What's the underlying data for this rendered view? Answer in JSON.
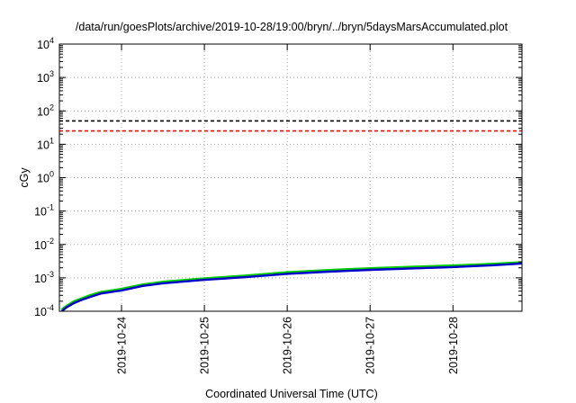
{
  "chart_data": {
    "type": "line",
    "title": "/data/run/goesPlots/archive/2019-10-28/19:00/bryn/../bryn/5daysMarsAccumulated.plot",
    "xlabel": "Coordinated Universal Time (UTC)",
    "ylabel": "cGy",
    "y_scale": "log",
    "ylim": [
      0.0001,
      10000
    ],
    "xlim": [
      "2019-10-23 06:00",
      "2019-10-28 20:00"
    ],
    "x_ticks": [
      "2019-10-24",
      "2019-10-25",
      "2019-10-26",
      "2019-10-27",
      "2019-10-28"
    ],
    "y_ticks": [
      {
        "value": 0.0001,
        "base": "10",
        "exp": "-4"
      },
      {
        "value": 0.001,
        "base": "10",
        "exp": "-3"
      },
      {
        "value": 0.01,
        "base": "10",
        "exp": "-2"
      },
      {
        "value": 0.1,
        "base": "10",
        "exp": "-1"
      },
      {
        "value": 1,
        "base": "10",
        "exp": "0"
      },
      {
        "value": 10,
        "base": "10",
        "exp": "1"
      },
      {
        "value": 100,
        "base": "10",
        "exp": "2"
      },
      {
        "value": 1000,
        "base": "10",
        "exp": "3"
      },
      {
        "value": 10000,
        "base": "10",
        "exp": "4"
      }
    ],
    "grid": true,
    "reference_lines": [
      {
        "y": 50,
        "color": "#000000",
        "style": "dashed"
      },
      {
        "y": 25,
        "color": "#ff0000",
        "style": "dashed"
      }
    ],
    "series": [
      {
        "color": "#00cc00",
        "x": [
          "2019-10-23 06:40",
          "2019-10-23 08:00",
          "2019-10-23 10:00",
          "2019-10-23 12:00",
          "2019-10-23 15:00",
          "2019-10-23 18:00",
          "2019-10-24 00:00",
          "2019-10-24 06:00",
          "2019-10-24 12:00",
          "2019-10-25 00:00",
          "2019-10-25 12:00",
          "2019-10-26 00:00",
          "2019-10-26 12:00",
          "2019-10-27 00:00",
          "2019-10-27 12:00",
          "2019-10-28 00:00",
          "2019-10-28 12:00",
          "2019-10-28 20:00"
        ],
        "values": [
          0.00011,
          0.00014,
          0.00019,
          0.00023,
          0.0003,
          0.00037,
          0.00046,
          0.00062,
          0.00075,
          0.00095,
          0.00115,
          0.00145,
          0.00168,
          0.0019,
          0.0021,
          0.0023,
          0.0026,
          0.0029
        ]
      },
      {
        "color": "#0000cc",
        "x": [
          "2019-10-23 06:40",
          "2019-10-23 08:00",
          "2019-10-23 10:00",
          "2019-10-23 12:00",
          "2019-10-23 15:00",
          "2019-10-23 18:00",
          "2019-10-24 00:00",
          "2019-10-24 06:00",
          "2019-10-24 12:00",
          "2019-10-25 00:00",
          "2019-10-25 12:00",
          "2019-10-26 00:00",
          "2019-10-26 12:00",
          "2019-10-27 00:00",
          "2019-10-27 12:00",
          "2019-10-28 00:00",
          "2019-10-28 12:00",
          "2019-10-28 20:00"
        ],
        "values": [
          0.0001,
          0.00013,
          0.00017,
          0.00021,
          0.00027,
          0.00034,
          0.00042,
          0.00057,
          0.00069,
          0.00087,
          0.00105,
          0.00132,
          0.00153,
          0.00173,
          0.00192,
          0.0021,
          0.0024,
          0.0027
        ]
      }
    ]
  }
}
